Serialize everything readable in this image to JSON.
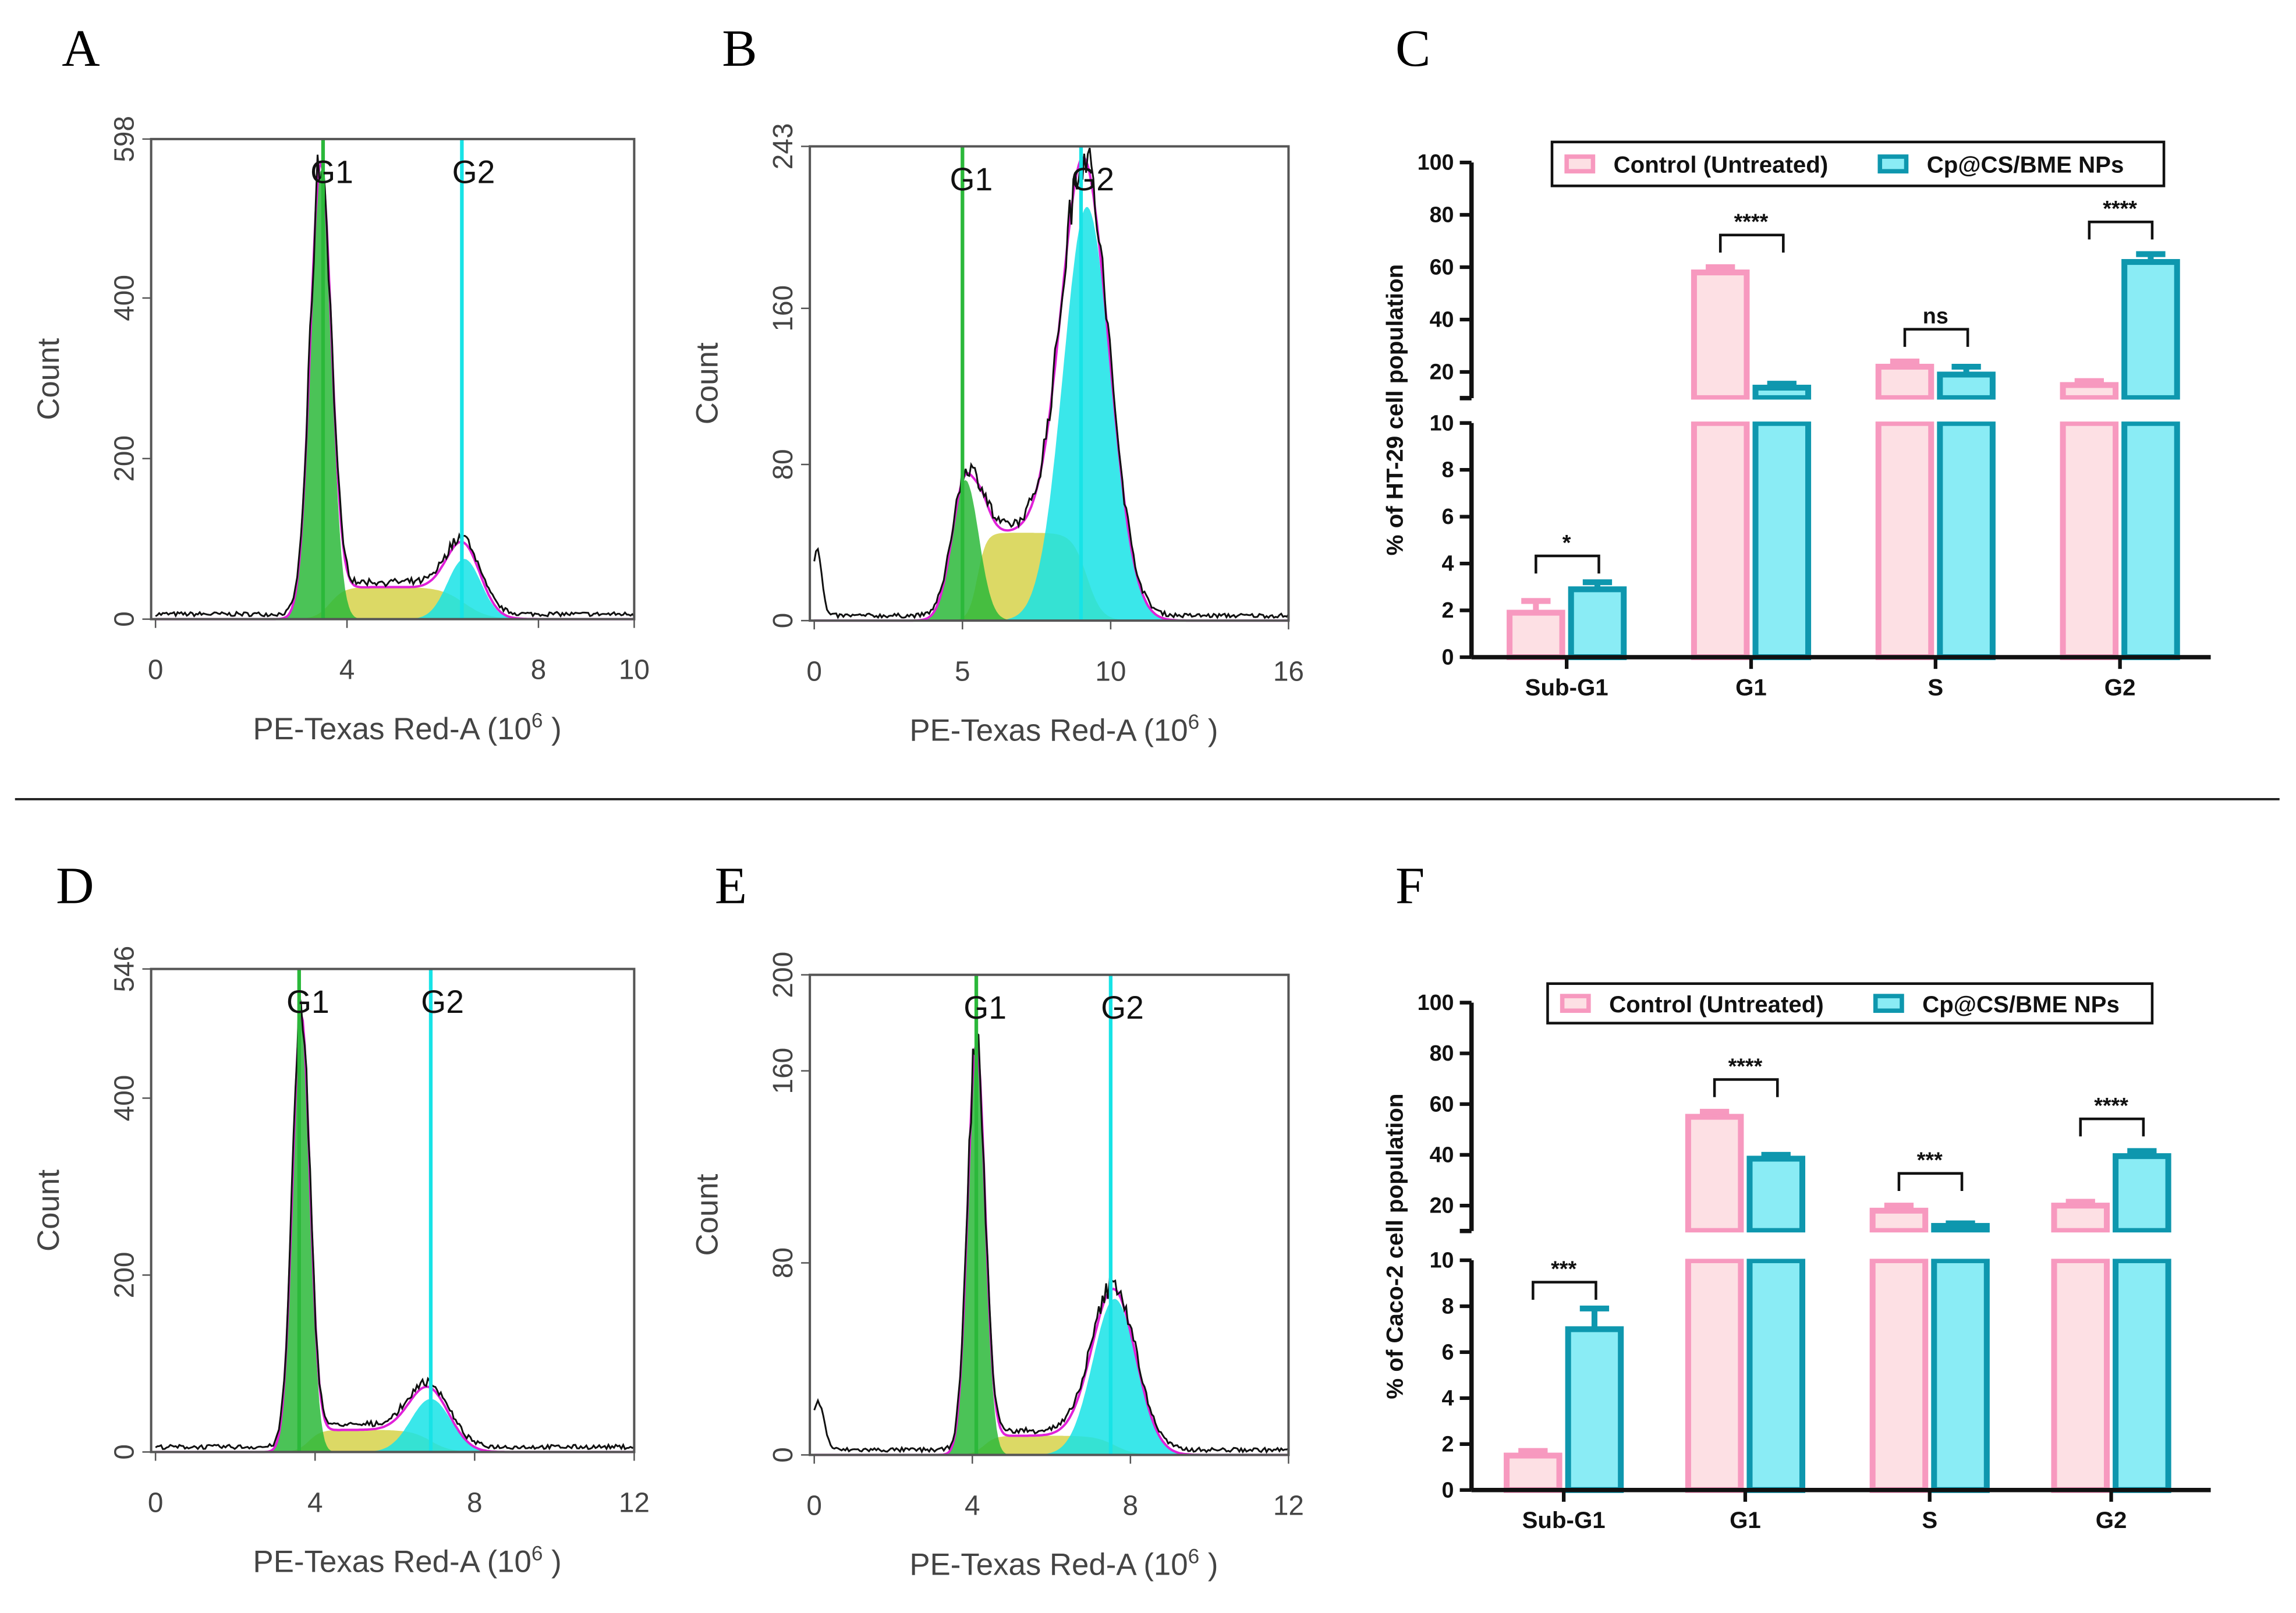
{
  "panel_letters": [
    "A",
    "B",
    "C",
    "D",
    "E",
    "F"
  ],
  "chart_data": [
    {
      "id": "A",
      "type": "histogram",
      "xlabel": "PE-Texas Red-A",
      "xlabel_unit_base": "(10",
      "xlabel_unit_exp": "6",
      "xlabel_unit_close": ")",
      "ylabel": "Count",
      "xlim": [
        0,
        10
      ],
      "ylim": [
        0,
        598
      ],
      "xticks": [
        "0",
        "4",
        "8",
        "10"
      ],
      "yticks": [
        "0",
        "200",
        "400",
        "598"
      ],
      "markers": [
        {
          "label": "G1",
          "x": 3.5
        },
        {
          "label": "G2",
          "x": 6.4
        }
      ],
      "g1": {
        "mean": 3.45,
        "sd": 0.22,
        "peak": 560
      },
      "g2": {
        "mean": 6.45,
        "sd": 0.35,
        "peak": 75
      },
      "s_level": 40,
      "debris": 0
    },
    {
      "id": "B",
      "type": "histogram",
      "xlabel": "PE-Texas Red-A",
      "xlabel_unit_base": "(10",
      "xlabel_unit_exp": "6",
      "xlabel_unit_close": ")",
      "ylabel": "Count",
      "xlim": [
        0,
        16
      ],
      "ylim": [
        0,
        243
      ],
      "xticks": [
        "0",
        "5",
        "10",
        "16"
      ],
      "yticks": [
        "0",
        "80",
        "160",
        "243"
      ],
      "markers": [
        {
          "label": "G1",
          "x": 5.0
        },
        {
          "label": "G2",
          "x": 9.0
        }
      ],
      "g1": {
        "mean": 5.1,
        "sd": 0.45,
        "peak": 72
      },
      "g2": {
        "mean": 9.2,
        "sd": 0.8,
        "peak": 212
      },
      "s_level": 45,
      "debris": 35
    },
    {
      "id": "C",
      "type": "bar",
      "ylabel": "% of HT-29 cell population",
      "categories": [
        "Sub-G1",
        "G1",
        "S",
        "G2"
      ],
      "ylim": [
        0,
        100
      ],
      "axis_break": [
        10,
        10
      ],
      "yticks_lower": [
        "0",
        "2",
        "4",
        "6",
        "8",
        "10"
      ],
      "yticks_upper": [
        "20",
        "40",
        "60",
        "80",
        "100"
      ],
      "series": [
        {
          "name": "Control (Untreated)",
          "values": [
            1.9,
            58,
            22,
            15
          ],
          "errors": [
            0.5,
            2,
            2,
            1.5
          ]
        },
        {
          "name": "Cp@CS/BME NPs",
          "values": [
            2.9,
            14,
            19,
            62
          ],
          "errors": [
            0.3,
            1.5,
            3,
            3
          ]
        }
      ],
      "significance": [
        "*",
        "****",
        "ns",
        "****"
      ]
    },
    {
      "id": "D",
      "type": "histogram",
      "xlabel": "PE-Texas Red-A",
      "xlabel_unit_base": "(10",
      "xlabel_unit_exp": "6",
      "xlabel_unit_close": ")",
      "ylabel": "Count",
      "xlim": [
        0,
        12
      ],
      "ylim": [
        0,
        546
      ],
      "xticks": [
        "0",
        "4",
        "8",
        "12"
      ],
      "yticks": [
        "0",
        "200",
        "400",
        "546"
      ],
      "markers": [
        {
          "label": "G1",
          "x": 3.6
        },
        {
          "label": "G2",
          "x": 6.9
        }
      ],
      "g1": {
        "mean": 3.65,
        "sd": 0.22,
        "peak": 490
      },
      "g2": {
        "mean": 6.9,
        "sd": 0.5,
        "peak": 60
      },
      "s_level": 25,
      "debris": 0
    },
    {
      "id": "E",
      "type": "histogram",
      "xlabel": "PE-Texas Red-A",
      "xlabel_unit_base": "(10",
      "xlabel_unit_exp": "6",
      "xlabel_unit_close": ")",
      "ylabel": "Count",
      "xlim": [
        0,
        12
      ],
      "ylim": [
        0,
        200
      ],
      "xticks": [
        "0",
        "4",
        "8",
        "12"
      ],
      "yticks": [
        "0",
        "80",
        "160",
        "200"
      ],
      "markers": [
        {
          "label": "G1",
          "x": 4.1
        },
        {
          "label": "G2",
          "x": 7.5
        }
      ],
      "g1": {
        "mean": 4.1,
        "sd": 0.22,
        "peak": 170
      },
      "g2": {
        "mean": 7.6,
        "sd": 0.55,
        "peak": 65
      },
      "s_level": 8,
      "debris": 20
    },
    {
      "id": "F",
      "type": "bar",
      "ylabel": "% of Caco-2 cell population",
      "categories": [
        "Sub-G1",
        "G1",
        "S",
        "G2"
      ],
      "ylim": [
        0,
        100
      ],
      "axis_break": [
        10,
        10
      ],
      "yticks_lower": [
        "0",
        "2",
        "4",
        "6",
        "8",
        "10"
      ],
      "yticks_upper": [
        "20",
        "40",
        "60",
        "80",
        "100"
      ],
      "series": [
        {
          "name": "Control (Untreated)",
          "values": [
            1.5,
            55,
            18,
            20
          ],
          "errors": [
            0.2,
            2,
            2,
            1.5
          ]
        },
        {
          "name": "Cp@CS/BME NPs",
          "values": [
            7.0,
            38.5,
            12,
            39.5
          ],
          "errors": [
            0.9,
            1.5,
            1,
            2
          ]
        }
      ],
      "significance": [
        "***",
        "****",
        "***",
        "****"
      ]
    }
  ],
  "colors": {
    "control_fill": "#fde0e4",
    "control_stroke": "#f799bf",
    "treated_fill": "#8aecf5",
    "treated_stroke": "#0e97ae",
    "g1": "#2bb83a",
    "g2": "#17e3e6",
    "s": "#d6d24a",
    "fit": "#e020d8"
  }
}
